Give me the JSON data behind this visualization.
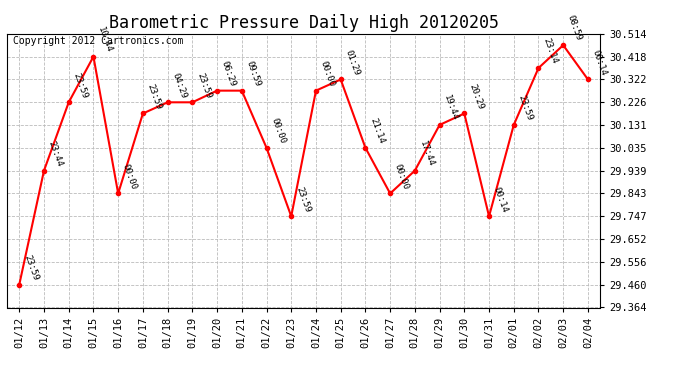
{
  "title": "Barometric Pressure Daily High 20120205",
  "copyright": "Copyright 2012 Cartronics.com",
  "x_labels": [
    "01/12",
    "01/13",
    "01/14",
    "01/15",
    "01/16",
    "01/17",
    "01/18",
    "01/19",
    "01/20",
    "01/21",
    "01/22",
    "01/23",
    "01/24",
    "01/25",
    "01/26",
    "01/27",
    "01/28",
    "01/29",
    "01/30",
    "01/31",
    "02/01",
    "02/02",
    "02/03",
    "02/04"
  ],
  "y_values": [
    29.46,
    29.939,
    30.226,
    30.418,
    29.843,
    30.179,
    30.226,
    30.226,
    30.275,
    30.275,
    30.035,
    29.747,
    30.275,
    30.322,
    30.035,
    29.843,
    29.939,
    30.131,
    30.179,
    29.747,
    30.131,
    30.37,
    30.466,
    30.322
  ],
  "point_labels": [
    "23:59",
    "23:44",
    "23:59",
    "10:44",
    "00:00",
    "23:59",
    "04:29",
    "23:59",
    "06:29",
    "09:59",
    "00:00",
    "23:59",
    "00:00",
    "01:29",
    "21:14",
    "00:00",
    "17:44",
    "19:44",
    "20:29",
    "00:14",
    "23:59",
    "23:14",
    "08:59",
    "00:14"
  ],
  "ylim_min": 29.364,
  "ylim_max": 30.514,
  "y_ticks": [
    29.364,
    29.46,
    29.556,
    29.652,
    29.747,
    29.843,
    29.939,
    30.035,
    30.131,
    30.226,
    30.322,
    30.418,
    30.514
  ],
  "line_color": "red",
  "marker_color": "red",
  "marker_style": "o",
  "marker_size": 3,
  "grid_color": "#bbbbbb",
  "background_color": "white",
  "title_fontsize": 12,
  "copyright_fontsize": 7,
  "label_fontsize": 6.5,
  "tick_fontsize": 7.5
}
